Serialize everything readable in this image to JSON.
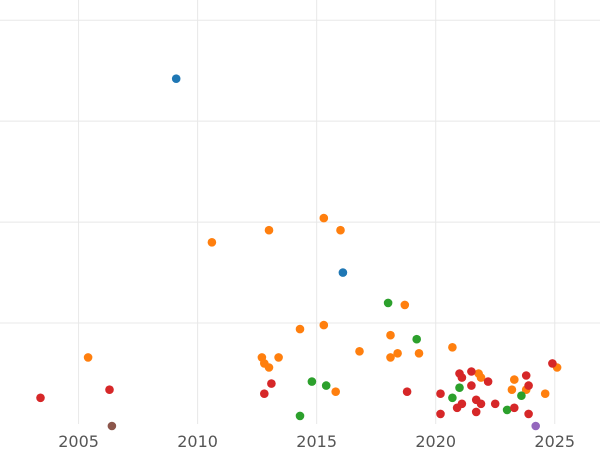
{
  "chart_data": {
    "type": "scatter",
    "title": "",
    "xlabel": "",
    "ylabel": "",
    "xlim": [
      2001.7,
      2026.9
    ],
    "ylim": [
      0,
      21
    ],
    "grid": true,
    "legend": "none",
    "x_ticks": [
      2005,
      2010,
      2015,
      2020,
      2025
    ],
    "x_tick_labels": [
      "2005",
      "2010",
      "2015",
      "2020",
      "2025"
    ],
    "y_grid": [
      5,
      10,
      15,
      20
    ],
    "colors": {
      "blue": "#1f77b4",
      "orange": "#ff7f0e",
      "green": "#2ca02c",
      "red": "#d62728",
      "purple": "#9467bd",
      "brown": "#8c564b"
    },
    "series": [
      {
        "color_key": "blue",
        "points": [
          [
            2009.1,
            17.1
          ],
          [
            2016.1,
            7.5
          ]
        ]
      },
      {
        "color_key": "orange",
        "points": [
          [
            2005.4,
            3.3
          ],
          [
            2010.6,
            9.0
          ],
          [
            2012.7,
            3.3
          ],
          [
            2012.8,
            3.0
          ],
          [
            2013.0,
            2.8
          ],
          [
            2013.0,
            9.6
          ],
          [
            2013.4,
            3.3
          ],
          [
            2014.3,
            4.7
          ],
          [
            2015.3,
            10.2
          ],
          [
            2015.3,
            4.9
          ],
          [
            2015.8,
            1.6
          ],
          [
            2016.0,
            9.6
          ],
          [
            2016.8,
            3.6
          ],
          [
            2018.1,
            3.3
          ],
          [
            2018.1,
            4.4
          ],
          [
            2018.4,
            3.5
          ],
          [
            2018.7,
            5.9
          ],
          [
            2019.3,
            3.5
          ],
          [
            2020.7,
            3.8
          ],
          [
            2021.8,
            2.5
          ],
          [
            2021.9,
            2.3
          ],
          [
            2023.2,
            1.7
          ],
          [
            2023.3,
            2.2
          ],
          [
            2023.8,
            1.7
          ],
          [
            2024.6,
            1.5
          ],
          [
            2025.1,
            2.8
          ]
        ]
      },
      {
        "color_key": "green",
        "points": [
          [
            2014.3,
            0.4
          ],
          [
            2014.8,
            2.1
          ],
          [
            2015.4,
            1.9
          ],
          [
            2018.0,
            6.0
          ],
          [
            2019.2,
            4.2
          ],
          [
            2020.7,
            1.3
          ],
          [
            2021.0,
            1.8
          ],
          [
            2023.0,
            0.7
          ],
          [
            2023.6,
            1.4
          ]
        ]
      },
      {
        "color_key": "red",
        "points": [
          [
            2003.4,
            1.3
          ],
          [
            2006.3,
            1.7
          ],
          [
            2012.8,
            1.5
          ],
          [
            2013.1,
            2.0
          ],
          [
            2018.8,
            1.6
          ],
          [
            2020.2,
            1.5
          ],
          [
            2020.2,
            0.5
          ],
          [
            2020.9,
            0.8
          ],
          [
            2021.0,
            2.5
          ],
          [
            2021.1,
            2.3
          ],
          [
            2021.1,
            1.0
          ],
          [
            2021.5,
            2.6
          ],
          [
            2021.5,
            1.9
          ],
          [
            2021.7,
            1.2
          ],
          [
            2021.7,
            0.6
          ],
          [
            2021.9,
            1.0
          ],
          [
            2022.2,
            2.1
          ],
          [
            2022.5,
            1.0
          ],
          [
            2023.3,
            0.8
          ],
          [
            2023.8,
            2.4
          ],
          [
            2023.9,
            0.5
          ],
          [
            2023.9,
            1.9
          ],
          [
            2024.9,
            3.0
          ]
        ]
      },
      {
        "color_key": "purple",
        "points": [
          [
            2024.2,
            -0.1
          ]
        ]
      },
      {
        "color_key": "brown",
        "points": [
          [
            2006.4,
            -0.1
          ]
        ]
      }
    ]
  }
}
